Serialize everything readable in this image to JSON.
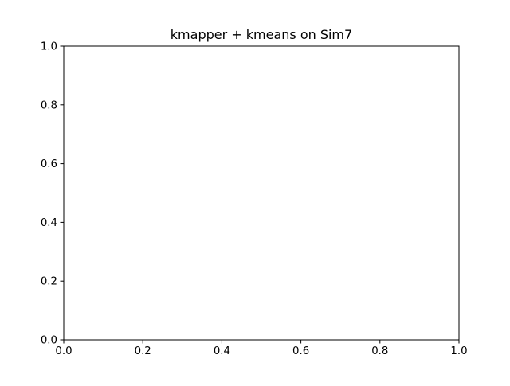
{
  "chart_data": {
    "type": "scatter",
    "title": "kmapper + kmeans on Sim7",
    "xlabel": "",
    "ylabel": "",
    "xlim": [
      0.0,
      1.0
    ],
    "ylim": [
      0.0,
      1.0
    ],
    "x_ticks": [
      0.0,
      0.2,
      0.4,
      0.6,
      0.8,
      1.0
    ],
    "y_ticks": [
      0.0,
      0.2,
      0.4,
      0.6,
      0.8,
      1.0
    ],
    "x_tick_labels": [
      "0.0",
      "0.2",
      "0.4",
      "0.6",
      "0.8",
      "1.0"
    ],
    "y_tick_labels": [
      "0.0",
      "0.2",
      "0.4",
      "0.6",
      "0.8",
      "1.0"
    ],
    "grid": false,
    "series": []
  }
}
